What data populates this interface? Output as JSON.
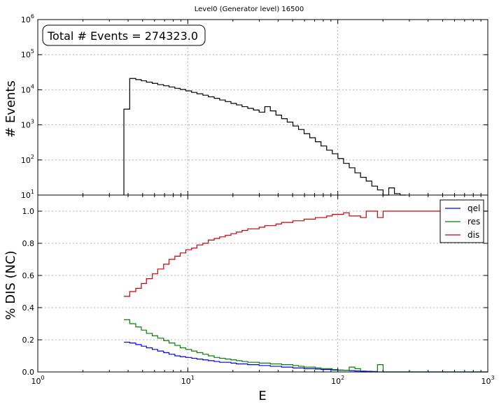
{
  "title": "Level0 (Generator level) 16500",
  "chart_data": [
    {
      "type": "line",
      "drawstyle": "steps",
      "title": "Level0 (Generator level) 16500",
      "annotation": "Total # Events = 274323.0",
      "xlabel": "E",
      "ylabel": "# Events",
      "xscale": "log",
      "yscale": "log",
      "xlim": [
        1,
        1000
      ],
      "ylim": [
        10,
        1000000
      ],
      "yticks": [
        {
          "value": 10,
          "base": "10",
          "exp": "1"
        },
        {
          "value": 100,
          "base": "10",
          "exp": "2"
        },
        {
          "value": 1000,
          "base": "10",
          "exp": "3"
        },
        {
          "value": 10000,
          "base": "10",
          "exp": "4"
        },
        {
          "value": 100000,
          "base": "10",
          "exp": "5"
        },
        {
          "value": 1000000,
          "base": "10",
          "exp": "6"
        }
      ],
      "grid": true,
      "bin_edges": [
        3.75,
        4.1,
        4.5,
        4.9,
        5.3,
        5.8,
        6.3,
        6.9,
        7.5,
        8.2,
        8.9,
        9.7,
        10.6,
        11.5,
        12.6,
        13.7,
        15.0,
        16.3,
        17.8,
        19.4,
        21.1,
        23.0,
        25.1,
        27.4,
        29.9,
        32.6,
        35.5,
        38.7,
        42.2,
        46.0,
        50.2,
        54.7,
        59.6,
        65.0,
        70.9,
        77.3,
        84.3,
        91.9,
        100.2,
        109.3,
        119.2,
        130.0,
        141.8,
        154.6,
        168.6,
        183.9,
        200.5,
        218.7,
        238.5,
        260.1,
        283.6
      ],
      "series": [
        {
          "name": "events",
          "color": "#000000",
          "values": [
            2800,
            21000,
            19500,
            18000,
            16500,
            15200,
            14000,
            13000,
            12000,
            11000,
            10200,
            9300,
            8400,
            7700,
            7000,
            6300,
            5700,
            5100,
            4600,
            4100,
            3700,
            3300,
            2950,
            2650,
            2300,
            3300,
            2500,
            1900,
            1500,
            1200,
            930,
            740,
            560,
            430,
            330,
            250,
            190,
            150,
            110,
            80,
            60,
            43,
            32,
            25,
            18,
            14,
            10,
            16,
            11,
            8
          ]
        }
      ]
    },
    {
      "type": "line",
      "drawstyle": "steps",
      "xlabel": "E",
      "ylabel": "% DIS (NC)",
      "xscale": "log",
      "xlim": [
        1,
        1000
      ],
      "ylim": [
        0.0,
        1.1
      ],
      "xticks": [
        {
          "value": 1,
          "base": "10",
          "exp": "0"
        },
        {
          "value": 10,
          "base": "10",
          "exp": "1"
        },
        {
          "value": 100,
          "base": "10",
          "exp": "2"
        },
        {
          "value": 1000,
          "base": "10",
          "exp": "3"
        }
      ],
      "yticks": [
        "0.0",
        "0.2",
        "0.4",
        "0.6",
        "0.8",
        "1.0"
      ],
      "legend": "top-right",
      "grid": true,
      "bin_edges": [
        3.75,
        4.1,
        4.5,
        4.9,
        5.3,
        5.8,
        6.3,
        6.9,
        7.5,
        8.2,
        8.9,
        9.7,
        10.6,
        11.5,
        12.6,
        13.7,
        15.0,
        16.3,
        17.8,
        19.4,
        21.1,
        23.0,
        25.1,
        27.4,
        29.9,
        32.6,
        35.5,
        38.7,
        42.2,
        46.0,
        50.2,
        54.7,
        59.6,
        65.0,
        70.9,
        77.3,
        84.3,
        91.9,
        100.2,
        109.3,
        119.2,
        130.0,
        141.8,
        154.6,
        168.6,
        183.9,
        200.5,
        218.7,
        238.5,
        260.1,
        283.6,
        310.0,
        340.0,
        380.0,
        420.0,
        470.0,
        520.0,
        580.0,
        650.0,
        730.0,
        820.0,
        920.0,
        1000.0
      ],
      "series": [
        {
          "name": "qel",
          "color": "#0000ff",
          "values": [
            0.185,
            0.18,
            0.17,
            0.16,
            0.15,
            0.14,
            0.13,
            0.12,
            0.11,
            0.1,
            0.095,
            0.09,
            0.085,
            0.08,
            0.075,
            0.07,
            0.065,
            0.06,
            0.06,
            0.055,
            0.05,
            0.05,
            0.045,
            0.045,
            0.04,
            0.04,
            0.035,
            0.035,
            0.03,
            0.03,
            0.025,
            0.025,
            0.02,
            0.02,
            0.018,
            0.015,
            0.015,
            0.012,
            0.01,
            0.01,
            0.008,
            0.006,
            0.005,
            0.004,
            0.003,
            0.0,
            0.0,
            0.0,
            0.0,
            0.0,
            0.0,
            0.0,
            0.0,
            0.0,
            0.0,
            0.0,
            0.0,
            0.0,
            0.0,
            0.0,
            0.0,
            0.0
          ]
        },
        {
          "name": "res",
          "color": "#008000",
          "values": [
            0.325,
            0.3,
            0.28,
            0.26,
            0.24,
            0.225,
            0.21,
            0.195,
            0.18,
            0.165,
            0.15,
            0.14,
            0.13,
            0.12,
            0.11,
            0.1,
            0.09,
            0.085,
            0.08,
            0.075,
            0.07,
            0.065,
            0.06,
            0.06,
            0.055,
            0.055,
            0.05,
            0.05,
            0.045,
            0.045,
            0.04,
            0.035,
            0.03,
            0.03,
            0.025,
            0.02,
            0.02,
            0.015,
            0.012,
            0.01,
            0.03,
            0.02,
            0.0,
            0.0,
            0.0,
            0.045,
            0.0,
            0.0,
            0.0,
            0.0,
            0.0,
            0.0,
            0.0,
            0.0,
            0.0,
            0.0,
            0.0,
            0.0,
            0.0,
            0.0,
            0.0,
            0.0
          ]
        },
        {
          "name": "dis",
          "color": "#cc0000",
          "values": [
            0.47,
            0.5,
            0.52,
            0.55,
            0.58,
            0.61,
            0.64,
            0.67,
            0.7,
            0.72,
            0.74,
            0.76,
            0.77,
            0.79,
            0.8,
            0.82,
            0.83,
            0.84,
            0.85,
            0.86,
            0.87,
            0.88,
            0.89,
            0.89,
            0.9,
            0.91,
            0.91,
            0.92,
            0.93,
            0.93,
            0.94,
            0.94,
            0.95,
            0.95,
            0.96,
            0.96,
            0.97,
            0.98,
            0.98,
            0.99,
            0.97,
            0.97,
            0.96,
            1.0,
            1.0,
            0.96,
            1.0,
            1.0,
            1.0,
            1.0,
            1.0,
            1.0,
            1.0,
            1.0,
            1.0,
            1.0,
            1.0,
            1.0,
            1.0,
            1.0,
            1.0,
            1.0
          ]
        }
      ]
    }
  ]
}
